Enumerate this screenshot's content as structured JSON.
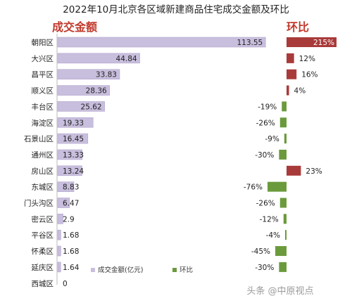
{
  "chart_data": [
    {
      "type": "bar",
      "orientation": "horizontal",
      "title": "2022年10月北京各区域新建商品住宅成交金额及环比",
      "header_label": "成交金额",
      "categories": [
        "朝阳区",
        "大兴区",
        "昌平区",
        "顺义区",
        "丰台区",
        "海淀区",
        "石景山区",
        "通州区",
        "房山区",
        "东城区",
        "门头沟区",
        "密云区",
        "平谷区",
        "怀柔区",
        "延庆区",
        "西城区"
      ],
      "series": [
        {
          "name": "成交金额(亿元)",
          "values": [
            113.55,
            44.84,
            33.83,
            28.36,
            25.62,
            19.33,
            16.45,
            13.33,
            13.24,
            8.83,
            6.47,
            2.9,
            1.68,
            1.68,
            1.64,
            0
          ]
        }
      ],
      "value_labels": [
        "113.55",
        "44.84",
        "33.83",
        "28.36",
        "25.62",
        "19.33",
        "16.45",
        "13.33",
        "13.24",
        "8.83",
        "6.47",
        "2.9",
        "1.68",
        "1.68",
        "1.64",
        "0"
      ],
      "colors": {
        "bar": "#c8bedd",
        "bar_stroke": "#b3a7cc",
        "header": "#c0392b"
      },
      "xlim": [
        0,
        120
      ]
    },
    {
      "type": "bar",
      "orientation": "horizontal",
      "header_label": "环比",
      "categories": [
        "朝阳区",
        "大兴区",
        "昌平区",
        "顺义区",
        "丰台区",
        "海淀区",
        "石景山区",
        "通州区",
        "房山区",
        "东城区",
        "门头沟区",
        "密云区",
        "平谷区",
        "怀柔区",
        "延庆区",
        "西城区"
      ],
      "series": [
        {
          "name": "环比",
          "values": [
            215,
            12,
            16,
            4,
            -19,
            -26,
            -9,
            -30,
            23,
            -76,
            -26,
            -12,
            -4,
            -45,
            -30,
            null
          ]
        }
      ],
      "value_labels": [
        "215%",
        "12%",
        "16%",
        "4%",
        "-19%",
        "-26%",
        "-9%",
        "-30%",
        "23%",
        "-76%",
        "-26%",
        "-12%",
        "-4%",
        "-45%",
        "-30%",
        ""
      ],
      "display_cap": 80,
      "colors": {
        "positive": "#a93a3a",
        "negative": "#6b9a3c",
        "header": "#c0392b"
      }
    }
  ],
  "legend": {
    "items": [
      {
        "label": "成交金额(亿元)",
        "color": "#c8bedd"
      },
      {
        "label": "环比",
        "color": "#6b9a3c"
      }
    ]
  },
  "watermark": {
    "text": "头条 @中原视点"
  }
}
